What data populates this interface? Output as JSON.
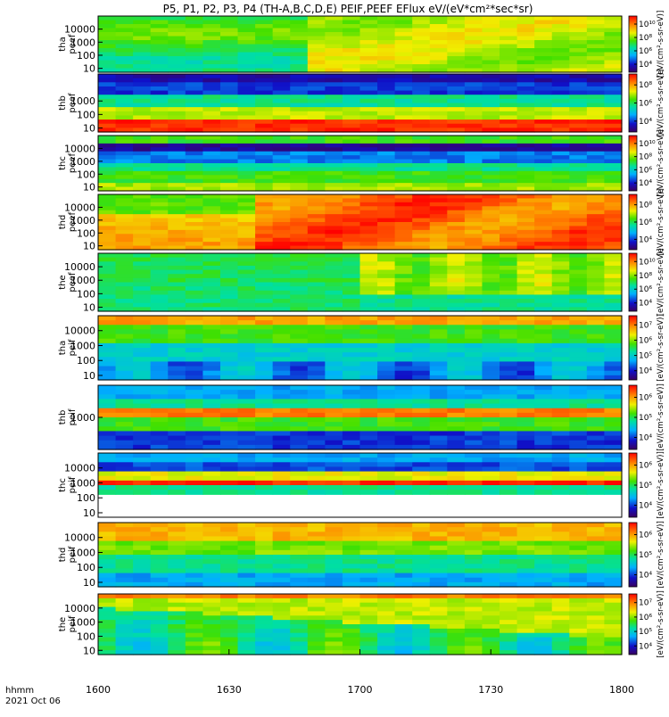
{
  "chart_data": {
    "type": "heatmap",
    "title": "P5, P1, P2, P3, P4 (TH-A,B,C,D,E) PEIF,PEEF EFlux eV/(eV*cm²*sec*sr)",
    "colorbar_label": "[eV/(cm²-s-sr-eV)]",
    "x_axis": {
      "label_line1": "hhmm",
      "label_line2": "2021 Oct 06",
      "ticks": [
        "1600",
        "1630",
        "1700",
        "1730",
        "1800"
      ],
      "range_minutes": [
        0,
        120
      ]
    },
    "panels": [
      {
        "probe": "tha",
        "product": "peef",
        "ylabel": [
          "tha",
          "peef"
        ],
        "yticks": [
          "10",
          "100",
          "1000",
          "10000"
        ],
        "ylog": true,
        "cbar_ticks": [
          "10⁴",
          "10⁶",
          "10⁸",
          "10¹⁰"
        ],
        "colorbar_text": "[eV/(cm²-s-sr-eV)]"
      },
      {
        "probe": "thb",
        "product": "peef",
        "ylabel": [
          "thb",
          "peef"
        ],
        "yticks": [
          "10",
          "100",
          "1000"
        ],
        "ylog": true,
        "cbar_ticks": [
          "10⁴",
          "10⁶",
          "10⁸"
        ],
        "colorbar_text": "[eV/(cm²-s-sr-eV)]"
      },
      {
        "probe": "thc",
        "product": "peef",
        "ylabel": [
          "thc",
          "peef"
        ],
        "yticks": [
          "10",
          "100",
          "1000",
          "10000"
        ],
        "ylog": true,
        "cbar_ticks": [
          "10⁴",
          "10⁶",
          "10⁸",
          "10¹⁰"
        ],
        "colorbar_text": "[eV/(cm²-s-sr-eV)]"
      },
      {
        "probe": "thd",
        "product": "peef",
        "ylabel": [
          "thd",
          "peef"
        ],
        "yticks": [
          "10",
          "100",
          "1000",
          "10000"
        ],
        "ylog": true,
        "cbar_ticks": [
          "10⁴",
          "10⁶",
          "10⁸"
        ],
        "colorbar_text": "[eV/(cm²-s-sr-eV)]"
      },
      {
        "probe": "the",
        "product": "peef",
        "ylabel": [
          "the",
          "peef"
        ],
        "yticks": [
          "10",
          "100",
          "1000",
          "10000"
        ],
        "ylog": true,
        "cbar_ticks": [
          "10⁴",
          "10⁶",
          "10⁸",
          "10¹⁰"
        ],
        "colorbar_text": "[eV/(cm²-s-sr-eV)]"
      },
      {
        "probe": "tha",
        "product": "peif",
        "ylabel": [
          "tha",
          "peif"
        ],
        "yticks": [
          "10",
          "100",
          "1000",
          "10000"
        ],
        "ylog": true,
        "cbar_ticks": [
          "10⁴",
          "10⁵",
          "10⁶",
          "10⁷"
        ],
        "colorbar_text": "[eV/(cm²-s-sr-eV)]"
      },
      {
        "probe": "thb",
        "product": "peif",
        "ylabel": [
          "thb",
          "peif"
        ],
        "yticks": [
          "1000"
        ],
        "ylog": true,
        "cbar_ticks": [
          "10⁴",
          "10⁵",
          "10⁶"
        ],
        "colorbar_text": "[eV/(cm²-s-sr-eV)]"
      },
      {
        "probe": "thc",
        "product": "peif",
        "ylabel": [
          "thc",
          "peif"
        ],
        "yticks": [
          "10",
          "100",
          "1000",
          "10000"
        ],
        "ylog": true,
        "cbar_ticks": [
          "10⁴",
          "10⁵",
          "10⁶"
        ],
        "colorbar_text": "[eV/(cm²-s-sr-eV)]"
      },
      {
        "probe": "thd",
        "product": "peif",
        "ylabel": [
          "thd",
          "peif"
        ],
        "yticks": [
          "10",
          "100",
          "1000",
          "10000"
        ],
        "ylog": true,
        "cbar_ticks": [
          "10⁴",
          "10⁵",
          "10⁶"
        ],
        "colorbar_text": "[eV/(cm²-s-sr-eV)]"
      },
      {
        "probe": "the",
        "product": "peif",
        "ylabel": [
          "the",
          "peif"
        ],
        "yticks": [
          "10",
          "100",
          "1000",
          "10000"
        ],
        "ylog": true,
        "cbar_ticks": [
          "10⁴",
          "10⁵",
          "10⁶",
          "10⁷"
        ],
        "colorbar_text": "[eV/(cm²-s-sr-eV)]"
      }
    ]
  }
}
